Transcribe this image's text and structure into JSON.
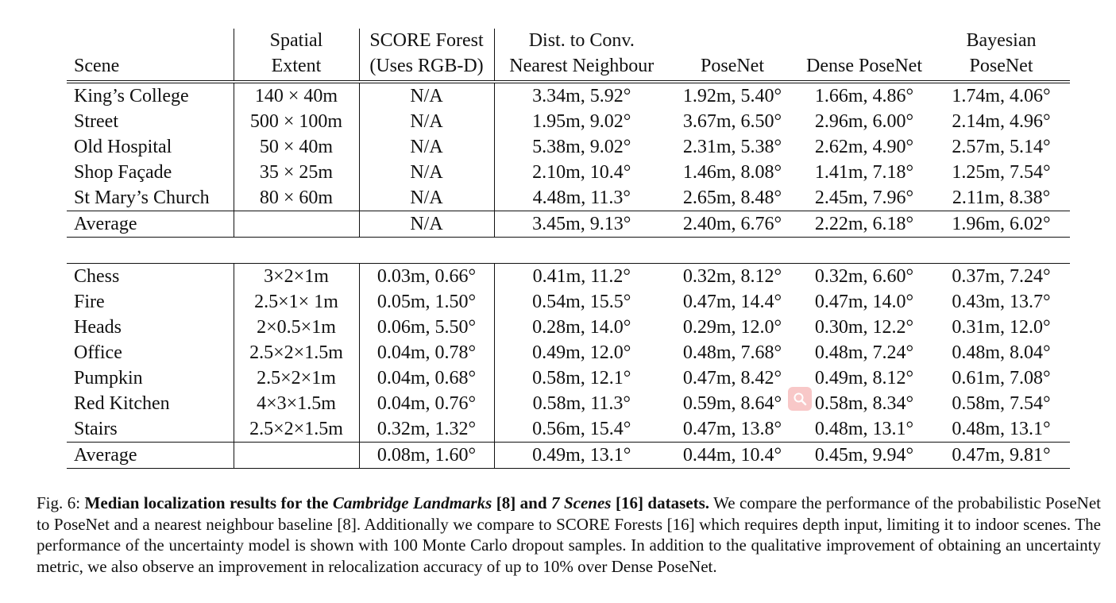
{
  "table": {
    "headers": [
      {
        "line1": "",
        "line2": "Scene"
      },
      {
        "line1": "Spatial",
        "line2": "Extent"
      },
      {
        "line1": "SCORE Forest",
        "line2": "(Uses RGB-D)"
      },
      {
        "line1": "Dist. to Conv.",
        "line2": "Nearest Neighbour"
      },
      {
        "line1": "",
        "line2": "PoseNet"
      },
      {
        "line1": "",
        "line2": "Dense PoseNet"
      },
      {
        "line1": "Bayesian",
        "line2": "PoseNet"
      }
    ],
    "cambridge_rows": [
      [
        "King’s College",
        "140 × 40m",
        "N/A",
        "3.34m, 5.92°",
        "1.92m, 5.40°",
        "1.66m, 4.86°",
        "1.74m, 4.06°"
      ],
      [
        "Street",
        "500 × 100m",
        "N/A",
        "1.95m, 9.02°",
        "3.67m, 6.50°",
        "2.96m, 6.00°",
        "2.14m, 4.96°"
      ],
      [
        "Old Hospital",
        "50 × 40m",
        "N/A",
        "5.38m, 9.02°",
        "2.31m, 5.38°",
        "2.62m, 4.90°",
        "2.57m, 5.14°"
      ],
      [
        "Shop Façade",
        "35 × 25m",
        "N/A",
        "2.10m, 10.4°",
        "1.46m, 8.08°",
        "1.41m, 7.18°",
        "1.25m, 7.54°"
      ],
      [
        "St Mary’s Church",
        "80 × 60m",
        "N/A",
        "4.48m, 11.3°",
        "2.65m, 8.48°",
        "2.45m, 7.96°",
        "2.11m, 8.38°"
      ]
    ],
    "cambridge_average": [
      "Average",
      "",
      "N/A",
      "3.45m, 9.13°",
      "2.40m, 6.76°",
      "2.22m, 6.18°",
      "1.96m, 6.02°"
    ],
    "seven_scenes_rows": [
      [
        "Chess",
        "3×2×1m",
        "0.03m, 0.66°",
        "0.41m, 11.2°",
        "0.32m, 8.12°",
        "0.32m, 6.60°",
        "0.37m, 7.24°"
      ],
      [
        "Fire",
        "2.5×1× 1m",
        "0.05m, 1.50°",
        "0.54m, 15.5°",
        "0.47m, 14.4°",
        "0.47m, 14.0°",
        "0.43m, 13.7°"
      ],
      [
        "Heads",
        "2×0.5×1m",
        "0.06m, 5.50°",
        "0.28m, 14.0°",
        "0.29m, 12.0°",
        "0.30m, 12.2°",
        "0.31m, 12.0°"
      ],
      [
        "Office",
        "2.5×2×1.5m",
        "0.04m, 0.78°",
        "0.49m, 12.0°",
        "0.48m, 7.68°",
        "0.48m, 7.24°",
        "0.48m, 8.04°"
      ],
      [
        "Pumpkin",
        "2.5×2×1m",
        "0.04m, 0.68°",
        "0.58m, 12.1°",
        "0.47m, 8.42°",
        "0.49m, 8.12°",
        "0.61m, 7.08°"
      ],
      [
        "Red Kitchen",
        "4×3×1.5m",
        "0.04m, 0.76°",
        "0.58m, 11.3°",
        "0.59m, 8.64°",
        "0.58m, 8.34°",
        "0.58m, 7.54°"
      ],
      [
        "Stairs",
        "2.5×2×1.5m",
        "0.32m, 1.32°",
        "0.56m, 15.4°",
        "0.47m, 13.8°",
        "0.48m, 13.1°",
        "0.48m, 13.1°"
      ]
    ],
    "seven_scenes_average": [
      "Average",
      "",
      "0.08m, 1.60°",
      "0.49m, 13.1°",
      "0.44m, 10.4°",
      "0.45m, 9.94°",
      "0.47m, 9.81°"
    ]
  },
  "caption": {
    "prefix": "Fig. 6: ",
    "bold_1": "Median localization results for the ",
    "italic_1": "Cambridge Landmarks",
    "bold_2": " [8] and ",
    "italic_2": "7 Scenes",
    "bold_3": " [16] datasets.",
    "body": " We compare the performance of the probabilistic PoseNet to PoseNet and a nearest neighbour baseline [8]. Additionally we compare to SCORE Forests [16] which requires depth input, limiting it to indoor scenes. The performance of the uncertainty model is shown with 100 Monte Carlo dropout samples. In addition to the qualitative improvement of obtaining an uncertainty metric, we also observe an improvement in relocalization accuracy of up to 10% over Dense PoseNet."
  },
  "overlay": {
    "icon": "magnifier-icon",
    "color": "#f5aaaa"
  }
}
